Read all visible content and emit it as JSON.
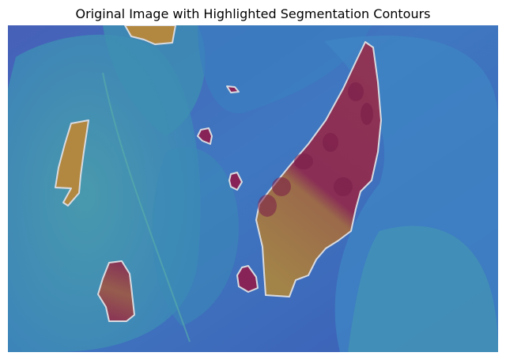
{
  "title": "Original Image with Highlighted Segmentation Contours",
  "colors": {
    "background_deep": "#3f55b4",
    "background_mid": "#3f80c4",
    "leaf_teal": "#3c96ae",
    "region_orange": "#b8873a",
    "region_crimson": "#8c1f52",
    "contour": "#d9dbe0"
  },
  "regions": [
    {
      "name": "top-region",
      "fill": "orange"
    },
    {
      "name": "tiny-region",
      "fill": "crimson"
    },
    {
      "name": "left-region",
      "fill": "orange"
    },
    {
      "name": "small-region-1",
      "fill": "crimson"
    },
    {
      "name": "small-region-2",
      "fill": "crimson"
    },
    {
      "name": "large-leaf-region",
      "fill": "mixed"
    },
    {
      "name": "lower-left-region",
      "fill": "mixed"
    },
    {
      "name": "lower-middle-region",
      "fill": "crimson"
    }
  ]
}
